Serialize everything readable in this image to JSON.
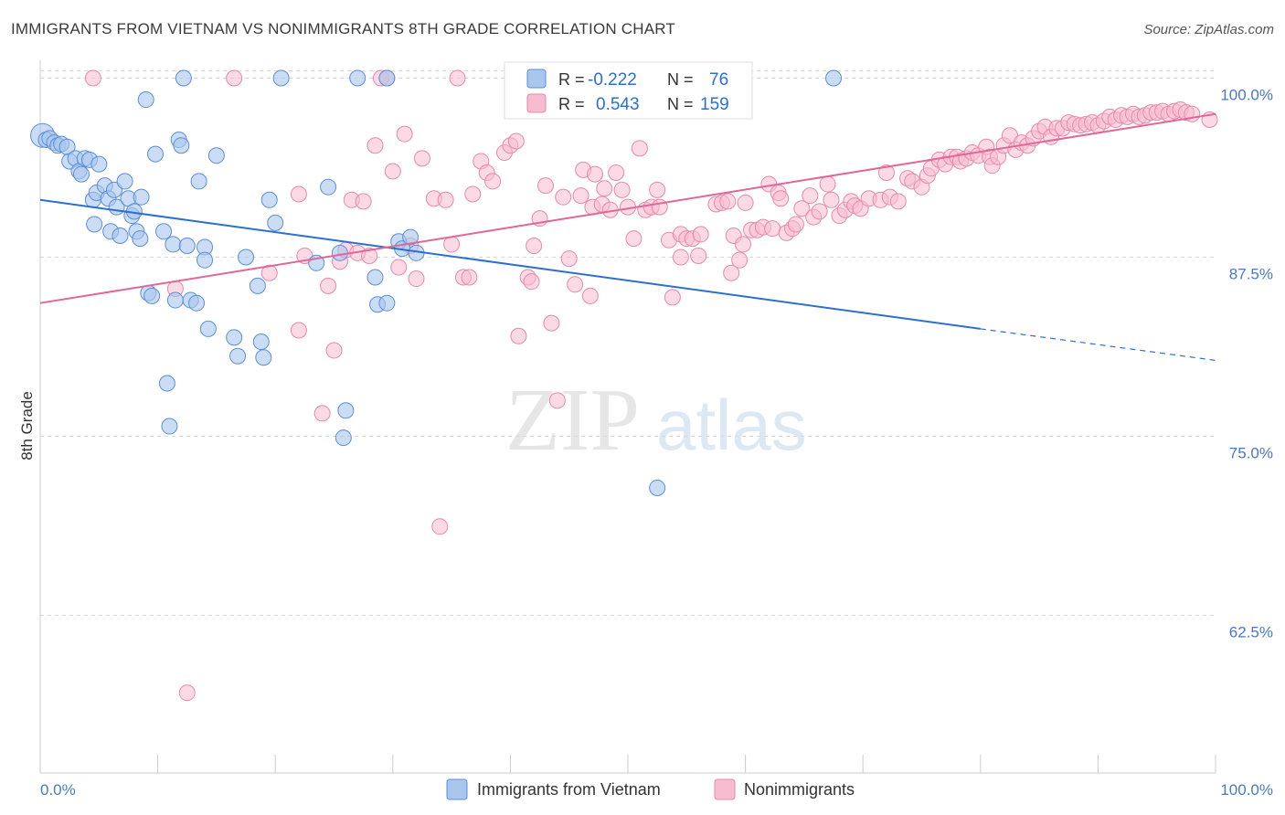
{
  "title": "IMMIGRANTS FROM VIETNAM VS NONIMMIGRANTS 8TH GRADE CORRELATION CHART",
  "source": "Source: ZipAtlas.com",
  "watermark": {
    "zip": "ZIP",
    "atlas": "atlas"
  },
  "colors": {
    "blue_fill": "#a9c6ef",
    "blue_stroke": "#5b8fd8",
    "blue_line": "#2d6fd1",
    "pink_fill": "#f7bcd0",
    "pink_stroke": "#e889a9",
    "pink_line": "#e0679a",
    "tick_label": "#4a78c9",
    "grid": "#d9d9d9"
  },
  "legend": {
    "r_label": "R =",
    "n_label": "N =",
    "rows": [
      {
        "r": "-0.222",
        "n": "76"
      },
      {
        "r": "0.543",
        "n": "159"
      }
    ]
  },
  "bottom_legend": [
    "Immigrants from Vietnam",
    "Nonimmigrants"
  ],
  "chart_data": {
    "type": "scatter",
    "title": "IMMIGRANTS FROM VIETNAM VS NONIMMIGRANTS 8TH GRADE CORRELATION CHART",
    "xlabel": "",
    "ylabel": "8th Grade",
    "xlim": [
      0,
      100
    ],
    "ylim": [
      51.5,
      101.5
    ],
    "x_tick_labels": [
      "0.0%",
      "100.0%"
    ],
    "y_ticks": [
      100.0,
      87.5,
      75.0,
      62.5
    ],
    "y_tick_labels": [
      "100.0%",
      "87.5%",
      "75.0%",
      "62.5%"
    ],
    "grid": true,
    "legend_position": "top-center",
    "series": [
      {
        "name": "Immigrants from Vietnam",
        "color": "#a9c6ef",
        "r": -0.222,
        "n": 76,
        "trend": {
          "x": [
            0,
            80
          ],
          "y": [
            91.5,
            82.5
          ],
          "dashed_to": [
            100,
            80.3
          ]
        },
        "points": [
          [
            0.2,
            96.0
          ],
          [
            0.5,
            95.7
          ],
          [
            0.8,
            95.8
          ],
          [
            1.2,
            95.5
          ],
          [
            1.5,
            95.3
          ],
          [
            1.8,
            95.4
          ],
          [
            2.3,
            95.2
          ],
          [
            2.5,
            94.2
          ],
          [
            3.0,
            94.4
          ],
          [
            3.3,
            93.5
          ],
          [
            3.5,
            93.3
          ],
          [
            3.8,
            94.4
          ],
          [
            4.2,
            94.3
          ],
          [
            4.5,
            91.5
          ],
          [
            4.6,
            89.8
          ],
          [
            4.8,
            92.0
          ],
          [
            5.0,
            94.0
          ],
          [
            5.5,
            92.5
          ],
          [
            5.8,
            91.6
          ],
          [
            6.0,
            89.3
          ],
          [
            6.3,
            92.2
          ],
          [
            6.5,
            91.0
          ],
          [
            6.8,
            89.0
          ],
          [
            7.2,
            92.8
          ],
          [
            7.5,
            91.6
          ],
          [
            7.8,
            90.4
          ],
          [
            8.0,
            90.7
          ],
          [
            8.2,
            89.3
          ],
          [
            8.5,
            88.8
          ],
          [
            8.6,
            91.7
          ],
          [
            9.0,
            98.5
          ],
          [
            9.2,
            85.0
          ],
          [
            9.5,
            84.8
          ],
          [
            9.8,
            94.7
          ],
          [
            10.5,
            89.3
          ],
          [
            10.8,
            78.7
          ],
          [
            11.0,
            75.7
          ],
          [
            11.3,
            88.4
          ],
          [
            11.5,
            84.5
          ],
          [
            11.8,
            95.7
          ],
          [
            12.0,
            95.3
          ],
          [
            12.2,
            100.0
          ],
          [
            12.5,
            88.3
          ],
          [
            12.8,
            84.5
          ],
          [
            13.3,
            84.3
          ],
          [
            13.5,
            92.8
          ],
          [
            14.0,
            88.2
          ],
          [
            14.0,
            87.3
          ],
          [
            14.3,
            82.5
          ],
          [
            15.0,
            94.6
          ],
          [
            16.5,
            81.9
          ],
          [
            16.8,
            80.6
          ],
          [
            17.5,
            87.5
          ],
          [
            18.5,
            85.5
          ],
          [
            18.8,
            81.6
          ],
          [
            19.0,
            80.5
          ],
          [
            19.5,
            91.5
          ],
          [
            20.0,
            89.9
          ],
          [
            20.5,
            100.0
          ],
          [
            23.5,
            87.1
          ],
          [
            24.5,
            92.4
          ],
          [
            25.5,
            87.8
          ],
          [
            25.8,
            74.9
          ],
          [
            26.0,
            76.8
          ],
          [
            27.0,
            100.0
          ],
          [
            28.5,
            86.1
          ],
          [
            28.7,
            84.2
          ],
          [
            29.5,
            84.3
          ],
          [
            29.5,
            100.0
          ],
          [
            30.5,
            88.6
          ],
          [
            30.8,
            88.1
          ],
          [
            31.5,
            88.9
          ],
          [
            32.0,
            87.8
          ],
          [
            43.5,
            100.0
          ],
          [
            52.5,
            71.4
          ],
          [
            67.5,
            100.0
          ]
        ]
      },
      {
        "name": "Nonimmigrants",
        "color": "#f7bcd0",
        "r": 0.543,
        "n": 159,
        "trend": {
          "x": [
            0,
            100
          ],
          "y": [
            84.3,
            97.5
          ]
        },
        "points": [
          [
            4.5,
            100.0
          ],
          [
            11.5,
            85.3
          ],
          [
            12.5,
            57.1
          ],
          [
            16.5,
            100.0
          ],
          [
            19.5,
            86.4
          ],
          [
            22.0,
            91.9
          ],
          [
            22.0,
            82.4
          ],
          [
            22.5,
            87.6
          ],
          [
            24.0,
            76.6
          ],
          [
            24.5,
            85.5
          ],
          [
            25.0,
            81.0
          ],
          [
            25.5,
            87.2
          ],
          [
            26.0,
            88.0
          ],
          [
            26.5,
            91.5
          ],
          [
            27.0,
            87.8
          ],
          [
            27.5,
            91.4
          ],
          [
            28.0,
            87.6
          ],
          [
            28.5,
            95.3
          ],
          [
            29.0,
            100.0
          ],
          [
            29.5,
            100.0
          ],
          [
            30.0,
            93.5
          ],
          [
            30.5,
            86.8
          ],
          [
            31.0,
            96.1
          ],
          [
            32.5,
            94.4
          ],
          [
            32.0,
            86.0
          ],
          [
            31.5,
            88.3
          ],
          [
            33.5,
            91.6
          ],
          [
            34.0,
            68.7
          ],
          [
            34.5,
            91.5
          ],
          [
            35.0,
            88.4
          ],
          [
            35.5,
            100.0
          ],
          [
            36.0,
            86.1
          ],
          [
            36.5,
            86.1
          ],
          [
            36.8,
            91.9
          ],
          [
            37.5,
            94.2
          ],
          [
            38.0,
            93.4
          ],
          [
            38.5,
            92.8
          ],
          [
            39.5,
            94.8
          ],
          [
            40.0,
            95.3
          ],
          [
            40.5,
            95.6
          ],
          [
            40.7,
            82.0
          ],
          [
            41.5,
            86.1
          ],
          [
            41.8,
            85.8
          ],
          [
            42.0,
            88.3
          ],
          [
            42.5,
            90.2
          ],
          [
            43.0,
            92.5
          ],
          [
            43.5,
            82.9
          ],
          [
            44.0,
            77.5
          ],
          [
            44.5,
            91.7
          ],
          [
            45.0,
            87.4
          ],
          [
            45.5,
            85.6
          ],
          [
            46.0,
            91.8
          ],
          [
            46.2,
            93.6
          ],
          [
            46.8,
            84.8
          ],
          [
            47.0,
            91.0
          ],
          [
            47.2,
            93.3
          ],
          [
            47.8,
            91.2
          ],
          [
            48.0,
            92.3
          ],
          [
            48.5,
            90.8
          ],
          [
            49.0,
            93.4
          ],
          [
            49.5,
            92.2
          ],
          [
            50.0,
            91.0
          ],
          [
            50.5,
            88.8
          ],
          [
            51.0,
            95.1
          ],
          [
            51.5,
            90.8
          ],
          [
            52.0,
            91.0
          ],
          [
            52.5,
            92.2
          ],
          [
            52.7,
            91.0
          ],
          [
            53.5,
            88.7
          ],
          [
            53.8,
            84.7
          ],
          [
            54.5,
            89.1
          ],
          [
            54.5,
            87.5
          ],
          [
            55.0,
            88.8
          ],
          [
            55.5,
            88.8
          ],
          [
            56.0,
            87.6
          ],
          [
            56.2,
            89.1
          ],
          [
            57.5,
            91.2
          ],
          [
            58.0,
            91.3
          ],
          [
            58.5,
            91.4
          ],
          [
            58.8,
            86.4
          ],
          [
            59.0,
            89.0
          ],
          [
            59.5,
            87.3
          ],
          [
            59.8,
            88.4
          ],
          [
            60.0,
            91.3
          ],
          [
            60.5,
            89.4
          ],
          [
            61.0,
            89.4
          ],
          [
            61.5,
            89.6
          ],
          [
            62.0,
            92.6
          ],
          [
            62.3,
            89.5
          ],
          [
            62.8,
            92.0
          ],
          [
            63.0,
            91.6
          ],
          [
            63.5,
            89.2
          ],
          [
            64.0,
            89.5
          ],
          [
            64.3,
            89.8
          ],
          [
            64.8,
            90.9
          ],
          [
            65.5,
            91.8
          ],
          [
            65.8,
            90.3
          ],
          [
            66.3,
            90.7
          ],
          [
            67.0,
            92.6
          ],
          [
            67.3,
            91.5
          ],
          [
            68.0,
            90.4
          ],
          [
            68.5,
            90.8
          ],
          [
            69.0,
            91.4
          ],
          [
            69.3,
            91.1
          ],
          [
            69.8,
            90.9
          ],
          [
            70.5,
            91.6
          ],
          [
            71.5,
            91.5
          ],
          [
            72.0,
            93.4
          ],
          [
            72.3,
            91.7
          ],
          [
            73.0,
            91.4
          ],
          [
            73.8,
            93.0
          ],
          [
            74.2,
            92.8
          ],
          [
            75.0,
            92.4
          ],
          [
            75.5,
            93.2
          ],
          [
            75.8,
            93.7
          ],
          [
            76.5,
            94.3
          ],
          [
            77.0,
            94.0
          ],
          [
            77.5,
            94.5
          ],
          [
            78.0,
            94.5
          ],
          [
            78.3,
            94.2
          ],
          [
            78.8,
            94.4
          ],
          [
            79.3,
            94.8
          ],
          [
            79.8,
            94.6
          ],
          [
            80.5,
            95.2
          ],
          [
            80.8,
            94.5
          ],
          [
            81.0,
            93.9
          ],
          [
            81.5,
            94.5
          ],
          [
            82.0,
            95.3
          ],
          [
            82.5,
            96.0
          ],
          [
            83.0,
            95.0
          ],
          [
            83.5,
            95.5
          ],
          [
            84.0,
            95.3
          ],
          [
            84.5,
            95.8
          ],
          [
            85.0,
            96.3
          ],
          [
            85.5,
            96.6
          ],
          [
            86.0,
            95.9
          ],
          [
            86.5,
            96.5
          ],
          [
            87.0,
            96.5
          ],
          [
            87.5,
            96.9
          ],
          [
            88.0,
            96.8
          ],
          [
            88.5,
            96.7
          ],
          [
            89.0,
            96.8
          ],
          [
            89.5,
            96.9
          ],
          [
            90.0,
            96.7
          ],
          [
            90.5,
            97.0
          ],
          [
            91.0,
            97.3
          ],
          [
            91.5,
            97.1
          ],
          [
            92.0,
            97.4
          ],
          [
            92.5,
            97.3
          ],
          [
            93.0,
            97.5
          ],
          [
            93.5,
            97.3
          ],
          [
            94.0,
            97.4
          ],
          [
            94.5,
            97.6
          ],
          [
            95.0,
            97.6
          ],
          [
            95.5,
            97.7
          ],
          [
            96.0,
            97.5
          ],
          [
            96.5,
            97.7
          ],
          [
            97.0,
            97.8
          ],
          [
            97.5,
            97.6
          ],
          [
            98.0,
            97.5
          ],
          [
            99.5,
            97.1
          ]
        ]
      }
    ]
  }
}
